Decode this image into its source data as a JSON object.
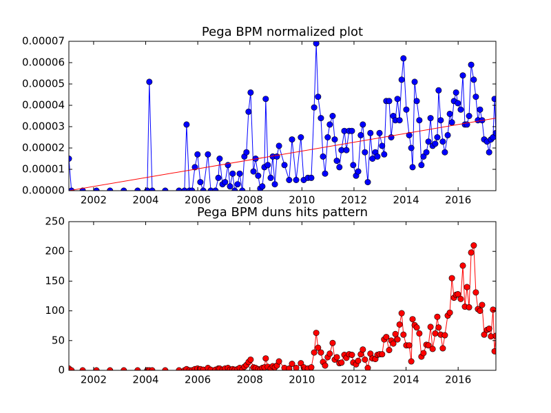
{
  "chart_data": [
    {
      "type": "line",
      "title": "Pega BPM normalized plot",
      "x": [
        2001.05,
        2001.15,
        2001.58,
        2002.11,
        2002.63,
        2003.16,
        2003.69,
        2004.06,
        2004.14,
        2004.25,
        2004.75,
        2005.28,
        2005.49,
        2005.57,
        2005.68,
        2005.78,
        2005.89,
        2005.99,
        2006.1,
        2006.21,
        2006.39,
        2006.5,
        2006.68,
        2006.79,
        2006.84,
        2006.95,
        2007.05,
        2007.16,
        2007.24,
        2007.34,
        2007.42,
        2007.53,
        2007.61,
        2007.71,
        2007.79,
        2007.87,
        2007.95,
        2008.03,
        2008.14,
        2008.22,
        2008.32,
        2008.4,
        2008.48,
        2008.56,
        2008.61,
        2008.69,
        2008.8,
        2008.88,
        2008.96,
        2009.04,
        2009.12,
        2009.33,
        2009.51,
        2009.62,
        2009.78,
        2009.96,
        2010.07,
        2010.23,
        2010.36,
        2010.47,
        2010.55,
        2010.62,
        2010.73,
        2010.81,
        2010.89,
        2010.99,
        2011.07,
        2011.18,
        2011.26,
        2011.34,
        2011.44,
        2011.52,
        2011.63,
        2011.71,
        2011.81,
        2011.92,
        2011.97,
        2012.08,
        2012.16,
        2012.26,
        2012.34,
        2012.42,
        2012.53,
        2012.63,
        2012.71,
        2012.82,
        2012.9,
        2012.98,
        2013.08,
        2013.16,
        2013.24,
        2013.35,
        2013.43,
        2013.51,
        2013.59,
        2013.67,
        2013.75,
        2013.83,
        2013.9,
        2014.01,
        2014.12,
        2014.2,
        2014.25,
        2014.33,
        2014.41,
        2014.51,
        2014.59,
        2014.67,
        2014.78,
        2014.86,
        2014.94,
        2015.02,
        2015.12,
        2015.2,
        2015.25,
        2015.33,
        2015.41,
        2015.49,
        2015.6,
        2015.68,
        2015.76,
        2015.84,
        2015.92,
        2015.99,
        2016.1,
        2016.18,
        2016.26,
        2016.34,
        2016.42,
        2016.5,
        2016.6,
        2016.68,
        2016.76,
        2016.84,
        2016.92,
        2017.0,
        2017.11,
        2017.19,
        2017.26,
        2017.34,
        2017.4,
        2017.45
      ],
      "series": [
        {
          "color": "#0000ff",
          "values": [
            1.5e-05,
            0,
            0,
            0,
            0,
            0,
            0,
            0,
            5.1e-05,
            0,
            0,
            0,
            0,
            3.1e-05,
            0,
            0,
            1.1e-05,
            1.7e-05,
            4e-06,
            0,
            1.7e-05,
            0,
            0,
            6e-06,
            1.5e-05,
            3e-06,
            4e-06,
            1.2e-05,
            2e-06,
            8e-06,
            0,
            3e-06,
            8e-06,
            0,
            1.6e-05,
            1.8e-05,
            3.7e-05,
            4.6e-05,
            9e-06,
            1.5e-05,
            7e-06,
            1e-06,
            2e-06,
            1.1e-05,
            4.3e-05,
            1.2e-05,
            6e-06,
            1.6e-05,
            3e-06,
            1.6e-05,
            2.1e-05,
            1.2e-05,
            5e-06,
            2.4e-05,
            5e-06,
            2.5e-05,
            5e-06,
            6e-06,
            6e-06,
            3.9e-05,
            6.9e-05,
            4.4e-05,
            3.4e-05,
            1.6e-05,
            8e-06,
            2.5e-05,
            3.1e-05,
            3.5e-05,
            2.4e-05,
            1.4e-05,
            1.1e-05,
            1.9e-05,
            2.8e-05,
            1.9e-05,
            2.8e-05,
            2.8e-05,
            1.2e-05,
            7e-06,
            9e-06,
            2.6e-05,
            3.1e-05,
            1.8e-05,
            4e-06,
            2.7e-05,
            1.5e-05,
            1.8e-05,
            1.6e-05,
            2.7e-05,
            2.1e-05,
            1.7e-05,
            4.2e-05,
            4.2e-05,
            2.5e-05,
            3.5e-05,
            3.3e-05,
            4.3e-05,
            3.3e-05,
            5.2e-05,
            6.2e-05,
            3.8e-05,
            2.6e-05,
            2e-05,
            1.1e-05,
            5.1e-05,
            4.2e-05,
            3.3e-05,
            1.2e-05,
            1.6e-05,
            1.8e-05,
            2.3e-05,
            3.4e-05,
            2.1e-05,
            2.2e-05,
            2.5e-05,
            4.7e-05,
            3.3e-05,
            2.3e-05,
            1.8e-05,
            2.6e-05,
            3.6e-05,
            3.2e-05,
            4.2e-05,
            4.6e-05,
            4.1e-05,
            3.8e-05,
            5.4e-05,
            3.1e-05,
            3.1e-05,
            3.5e-05,
            5.9e-05,
            5.2e-05,
            4.4e-05,
            3.3e-05,
            3.8e-05,
            3.3e-05,
            2.4e-05,
            2.3e-05,
            1.8e-05,
            2.4e-05,
            2.5e-05,
            4.3e-05,
            2.7e-05
          ]
        }
      ],
      "trend": {
        "color": "#ff0000",
        "x": [
          2001.05,
          2017.45
        ],
        "values": [
          0,
          3.4e-05
        ]
      },
      "xlim": [
        2001.05,
        2017.45
      ],
      "xticks": [
        2002,
        2004,
        2006,
        2008,
        2010,
        2012,
        2014,
        2016
      ],
      "ylim": [
        0,
        7e-05
      ],
      "yticks": [
        {
          "value": 0,
          "label": "0.00000"
        },
        {
          "value": 1e-05,
          "label": "0.00001"
        },
        {
          "value": 2e-05,
          "label": "0.00002"
        },
        {
          "value": 3e-05,
          "label": "0.00003"
        },
        {
          "value": 4e-05,
          "label": "0.00004"
        },
        {
          "value": 5e-05,
          "label": "0.00005"
        },
        {
          "value": 6e-05,
          "label": "0.00006"
        },
        {
          "value": 7e-05,
          "label": "0.00007"
        }
      ]
    },
    {
      "type": "line",
      "title": "Pega BPM duns hits pattern",
      "x": [
        2001.05,
        2001.15,
        2001.58,
        2002.11,
        2002.63,
        2003.16,
        2003.69,
        2004.06,
        2004.14,
        2004.25,
        2004.75,
        2005.28,
        2005.49,
        2005.57,
        2005.68,
        2005.78,
        2005.89,
        2005.99,
        2006.1,
        2006.21,
        2006.39,
        2006.5,
        2006.68,
        2006.79,
        2006.84,
        2006.95,
        2007.05,
        2007.16,
        2007.24,
        2007.34,
        2007.42,
        2007.53,
        2007.61,
        2007.71,
        2007.79,
        2007.87,
        2007.95,
        2008.03,
        2008.14,
        2008.22,
        2008.32,
        2008.4,
        2008.48,
        2008.56,
        2008.61,
        2008.69,
        2008.8,
        2008.88,
        2008.96,
        2009.04,
        2009.12,
        2009.33,
        2009.51,
        2009.62,
        2009.78,
        2009.96,
        2010.07,
        2010.23,
        2010.36,
        2010.47,
        2010.55,
        2010.62,
        2010.73,
        2010.81,
        2010.89,
        2010.99,
        2011.07,
        2011.18,
        2011.26,
        2011.34,
        2011.44,
        2011.52,
        2011.63,
        2011.71,
        2011.81,
        2011.92,
        2011.97,
        2012.08,
        2012.16,
        2012.26,
        2012.34,
        2012.42,
        2012.53,
        2012.63,
        2012.71,
        2012.82,
        2012.9,
        2012.98,
        2013.08,
        2013.16,
        2013.24,
        2013.35,
        2013.43,
        2013.51,
        2013.59,
        2013.67,
        2013.75,
        2013.83,
        2013.9,
        2014.01,
        2014.12,
        2014.2,
        2014.25,
        2014.33,
        2014.41,
        2014.51,
        2014.59,
        2014.67,
        2014.78,
        2014.86,
        2014.94,
        2015.02,
        2015.12,
        2015.2,
        2015.25,
        2015.33,
        2015.41,
        2015.49,
        2015.6,
        2015.68,
        2015.76,
        2015.84,
        2015.92,
        2015.99,
        2016.1,
        2016.18,
        2016.26,
        2016.34,
        2016.42,
        2016.5,
        2016.6,
        2016.68,
        2016.76,
        2016.84,
        2016.92,
        2017.0,
        2017.11,
        2017.19,
        2017.26,
        2017.34,
        2017.4,
        2017.45
      ],
      "series": [
        {
          "color": "#ff0000",
          "values": [
            3,
            0,
            0,
            0,
            0,
            0,
            0,
            0,
            0,
            0,
            0,
            0,
            0,
            2,
            0,
            0,
            2,
            3,
            2,
            1,
            4,
            1,
            1,
            3,
            3,
            1,
            3,
            4,
            1,
            2,
            1,
            2,
            4,
            1,
            6,
            9,
            14,
            18,
            5,
            4,
            2,
            1,
            4,
            5,
            20,
            6,
            3,
            7,
            5,
            8,
            15,
            4,
            3,
            11,
            4,
            12,
            5,
            3,
            5,
            30,
            63,
            38,
            30,
            14,
            8,
            22,
            28,
            46,
            18,
            22,
            12,
            13,
            26,
            21,
            27,
            26,
            13,
            10,
            16,
            27,
            35,
            18,
            4,
            28,
            20,
            19,
            26,
            27,
            27,
            52,
            56,
            34,
            50,
            45,
            61,
            52,
            77,
            96,
            60,
            42,
            42,
            15,
            86,
            76,
            72,
            62,
            23,
            29,
            43,
            42,
            73,
            36,
            62,
            90,
            72,
            60,
            37,
            59,
            92,
            97,
            155,
            122,
            127,
            128,
            120,
            176,
            107,
            140,
            106,
            198,
            210,
            131,
            103,
            100,
            110,
            60,
            68,
            70,
            57,
            102,
            32,
            58
          ]
        }
      ],
      "xlim": [
        2001.05,
        2017.45
      ],
      "xticks": [
        2002,
        2004,
        2006,
        2008,
        2010,
        2012,
        2014,
        2016
      ],
      "ylim": [
        0,
        250
      ],
      "yticks": [
        0,
        50,
        100,
        150,
        200,
        250
      ]
    }
  ]
}
